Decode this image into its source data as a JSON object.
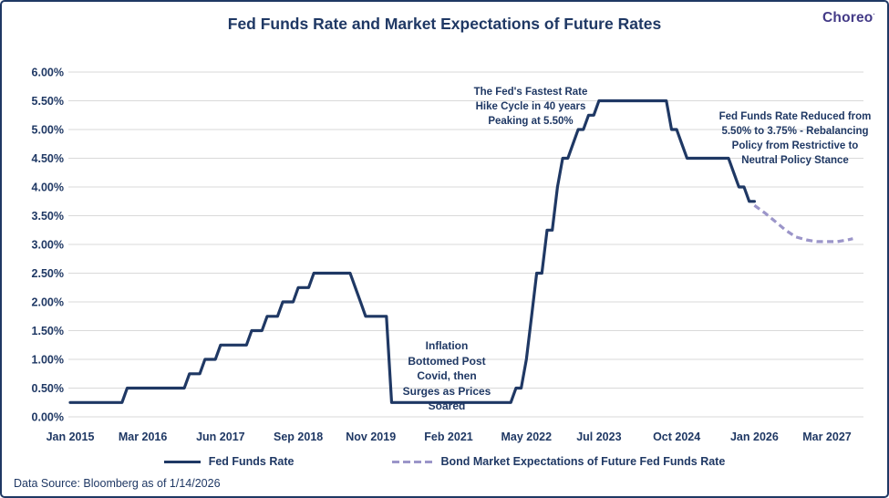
{
  "header": {
    "title": "Fed Funds Rate and Market Expectations of Future Rates",
    "logo": "Choreo"
  },
  "annotations": {
    "peak": "The Fed's Fastest Rate\nHike Cycle in 40 years\nPeaking at 5.50%",
    "reduction": "Fed Funds Rate Reduced from\n5.50% to 3.75% - Rebalancing\nPolicy from Restrictive to\nNeutral Policy Stance",
    "inflation": "Inflation\nBottomed Post\nCovid, then\nSurges as Prices\nSoared"
  },
  "legend": {
    "solid_label": "Fed Funds Rate",
    "dashed_label": "Bond Market Expectations of Future Fed Funds Rate"
  },
  "footer": {
    "source": "Data Source: Bloomberg as of 1/14/2026"
  },
  "colors": {
    "navy": "#1f3864",
    "dashed_purple": "#9b95c9",
    "gridline": "#d9d9d9",
    "logo": "#433a87"
  },
  "chart_data": {
    "type": "line",
    "title": "Fed Funds Rate and Market Expectations of Future Rates",
    "xlabel": "",
    "ylabel": "",
    "ylim": [
      0,
      6
    ],
    "grid": true,
    "legend_position": "bottom",
    "y_ticks": [
      "6.00%",
      "5.50%",
      "5.00%",
      "4.50%",
      "4.00%",
      "3.50%",
      "3.00%",
      "2.50%",
      "2.00%",
      "1.50%",
      "1.00%",
      "0.50%",
      "0.00%"
    ],
    "x_ticks": [
      "Jan 2015",
      "Mar 2016",
      "Jun 2017",
      "Sep 2018",
      "Nov 2019",
      "Feb 2021",
      "May 2022",
      "Jul 2023",
      "Oct 2024",
      "Jan 2026",
      "Mar 2027"
    ],
    "series": [
      {
        "name": "Fed Funds Rate",
        "style": "solid",
        "color": "#1f3864",
        "note": "step series; each entry is [effective month, rate %] and the rate holds until the next entry; last entry marks where the actual series ends",
        "breakpoints": [
          [
            "Jan 2015",
            0.25
          ],
          [
            "Dec 2015",
            0.5
          ],
          [
            "Dec 2016",
            0.75
          ],
          [
            "Mar 2017",
            1.0
          ],
          [
            "Jun 2017",
            1.25
          ],
          [
            "Dec 2017",
            1.5
          ],
          [
            "Mar 2018",
            1.75
          ],
          [
            "Jun 2018",
            2.0
          ],
          [
            "Sep 2018",
            2.25
          ],
          [
            "Dec 2018",
            2.5
          ],
          [
            "Aug 2019",
            2.25
          ],
          [
            "Sep 2019",
            2.0
          ],
          [
            "Oct 2019",
            1.75
          ],
          [
            "Mar 2020",
            0.25
          ],
          [
            "Mar 2022",
            0.5
          ],
          [
            "May 2022",
            1.0
          ],
          [
            "Jun 2022",
            1.75
          ],
          [
            "Jul 2022",
            2.5
          ],
          [
            "Sep 2022",
            3.25
          ],
          [
            "Nov 2022",
            4.0
          ],
          [
            "Dec 2022",
            4.5
          ],
          [
            "Feb 2023",
            4.75
          ],
          [
            "Mar 2023",
            5.0
          ],
          [
            "May 2023",
            5.25
          ],
          [
            "Jul 2023",
            5.5
          ],
          [
            "Sep 2024",
            5.0
          ],
          [
            "Nov 2024",
            4.75
          ],
          [
            "Dec 2024",
            4.5
          ],
          [
            "Sep 2025",
            4.25
          ],
          [
            "Oct 2025",
            4.0
          ],
          [
            "Dec 2025",
            3.75
          ],
          [
            "Jan 2026",
            3.75
          ]
        ]
      },
      {
        "name": "Bond Market Expectations of Future Fed Funds Rate",
        "style": "dashed",
        "color": "#9b95c9",
        "points": [
          [
            "Jan 2026",
            3.68
          ],
          [
            "Mar 2026",
            3.55
          ],
          [
            "May 2026",
            3.4
          ],
          [
            "Jul 2026",
            3.25
          ],
          [
            "Sep 2026",
            3.13
          ],
          [
            "Nov 2026",
            3.08
          ],
          [
            "Jan 2027",
            3.05
          ],
          [
            "Mar 2027",
            3.05
          ],
          [
            "May 2027",
            3.05
          ],
          [
            "Jul 2027",
            3.08
          ],
          [
            "Aug 2027",
            3.1
          ]
        ]
      }
    ]
  }
}
